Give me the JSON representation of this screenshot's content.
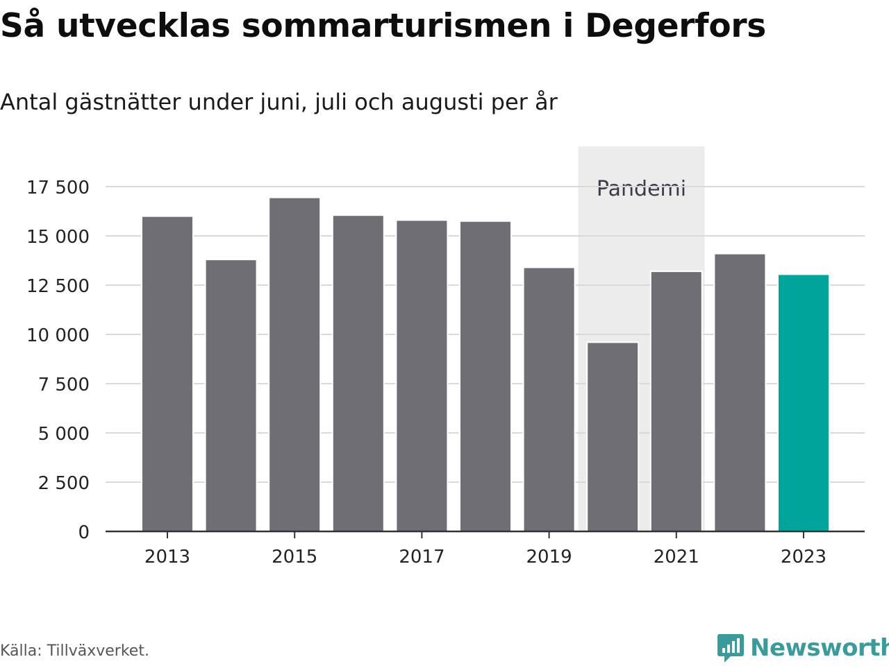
{
  "title": "Så utvecklas sommarturismen i Degerfors",
  "subtitle": "Antal gästnätter under juni, juli och augusti per år",
  "source": "Källa: Tillväxverket.",
  "logo": {
    "text": "Newsworthy",
    "icon": "newsworthy-chart-bubble-icon"
  },
  "colors": {
    "bar": "#6f6e75",
    "highlight": "#00a49a",
    "shade": "#ececec",
    "grid": "#d9d9d9",
    "axis": "#333333",
    "brand": "#3b9a9a"
  },
  "chart_data": {
    "type": "bar",
    "categories": [
      "2013",
      "2014",
      "2015",
      "2016",
      "2017",
      "2018",
      "2019",
      "2020",
      "2021",
      "2022",
      "2023"
    ],
    "values": [
      16000,
      13800,
      16950,
      16050,
      15800,
      15750,
      13400,
      9600,
      13200,
      14100,
      13050
    ],
    "highlight": [
      "2023"
    ],
    "x_tick_labels": [
      "2013",
      "2015",
      "2017",
      "2019",
      "2021",
      "2023"
    ],
    "y_ticks": [
      0,
      2500,
      5000,
      7500,
      10000,
      12500,
      15000,
      17500
    ],
    "y_tick_labels": [
      "0",
      "2 500",
      "5 000",
      "7 500",
      "10 000",
      "12 500",
      "15 000",
      "17 500"
    ],
    "ylim": [
      0,
      19500
    ],
    "grid": true,
    "legend": "none",
    "annotation": {
      "label": "Pandemi",
      "from": "2020",
      "to": "2021"
    },
    "title": "Så utvecklas sommarturismen i Degerfors",
    "subtitle": "Antal gästnätter under juni, juli och augusti per år",
    "xlabel": "",
    "ylabel": ""
  }
}
